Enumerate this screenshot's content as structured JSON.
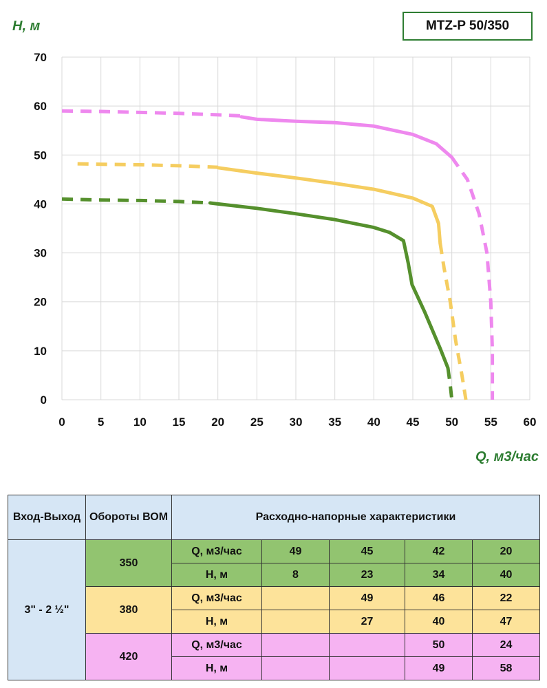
{
  "model": "MTZ-P 50/350",
  "chart_data": {
    "type": "line",
    "ylabel": "H, м",
    "xlabel": "Q, м3/час",
    "xlim": [
      0,
      60
    ],
    "ylim": [
      0,
      70
    ],
    "xticks": [
      0,
      5,
      10,
      15,
      20,
      25,
      30,
      35,
      40,
      45,
      50,
      55,
      60
    ],
    "yticks": [
      0,
      10,
      20,
      30,
      40,
      50,
      60,
      70
    ],
    "grid": true,
    "series": [
      {
        "color": "#ee88ee",
        "dashed_start": [
          [
            0,
            59
          ],
          [
            5,
            58.9
          ],
          [
            10,
            58.7
          ],
          [
            15,
            58.5
          ],
          [
            20,
            58.2
          ],
          [
            23,
            58
          ]
        ],
        "solid": [
          [
            23,
            57.8
          ],
          [
            25,
            57.3
          ],
          [
            30,
            56.9
          ],
          [
            35,
            56.6
          ],
          [
            40,
            55.9
          ],
          [
            45,
            54.2
          ],
          [
            48,
            52.3
          ],
          [
            50,
            49.5
          ]
        ],
        "dashed_end": [
          [
            50,
            49.5
          ],
          [
            52,
            45
          ],
          [
            53.5,
            38
          ],
          [
            54.5,
            30
          ],
          [
            55,
            20
          ],
          [
            55.2,
            10
          ],
          [
            55.2,
            0
          ]
        ]
      },
      {
        "color": "#f5cd60",
        "dashed_start": [
          [
            2,
            48.2
          ],
          [
            5,
            48.1
          ],
          [
            10,
            48
          ],
          [
            15,
            47.8
          ],
          [
            20,
            47.5
          ]
        ],
        "solid": [
          [
            20,
            47.4
          ],
          [
            25,
            46.3
          ],
          [
            30,
            45.3
          ],
          [
            35,
            44.2
          ],
          [
            40,
            43
          ],
          [
            45,
            41.2
          ],
          [
            47.5,
            39.5
          ],
          [
            48.3,
            36
          ],
          [
            48.5,
            32
          ]
        ],
        "dashed_end": [
          [
            48.5,
            32
          ],
          [
            49,
            27
          ],
          [
            49.8,
            20
          ],
          [
            50.5,
            12
          ],
          [
            51.3,
            5
          ],
          [
            51.8,
            0
          ]
        ]
      },
      {
        "color": "#55902d",
        "dashed_start": [
          [
            0,
            41
          ],
          [
            5,
            40.8
          ],
          [
            10,
            40.7
          ],
          [
            15,
            40.5
          ],
          [
            19,
            40.2
          ]
        ],
        "solid": [
          [
            19,
            40.2
          ],
          [
            20,
            40
          ],
          [
            25,
            39.1
          ],
          [
            30,
            38
          ],
          [
            35,
            36.8
          ],
          [
            40,
            35.2
          ],
          [
            42,
            34.2
          ],
          [
            43.8,
            32.5
          ],
          [
            44.4,
            28
          ],
          [
            44.9,
            23.5
          ],
          [
            46.5,
            18
          ],
          [
            48.5,
            10.5
          ],
          [
            49.5,
            6.5
          ]
        ],
        "dashed_end": [
          [
            49.5,
            6.5
          ],
          [
            49.8,
            3
          ],
          [
            50,
            0
          ]
        ]
      }
    ]
  },
  "table": {
    "headers": {
      "inout": "Вход-Выход",
      "rpm": "Обороты ВОМ",
      "characteristics": "Расходно-напорные характеристики"
    },
    "inout_value": "3\" - 2 ½\"",
    "q_label": "Q, м3/час",
    "h_label": "Н, м",
    "rows": [
      {
        "rpm": "350",
        "q": [
          "49",
          "45",
          "42",
          "20"
        ],
        "h": [
          "8",
          "23",
          "34",
          "40"
        ]
      },
      {
        "rpm": "380",
        "q": [
          "",
          "49",
          "46",
          "22"
        ],
        "h": [
          "",
          "27",
          "40",
          "47"
        ]
      },
      {
        "rpm": "420",
        "q": [
          "",
          "",
          "50",
          "24"
        ],
        "h": [
          "",
          "",
          "49",
          "58"
        ]
      }
    ]
  }
}
